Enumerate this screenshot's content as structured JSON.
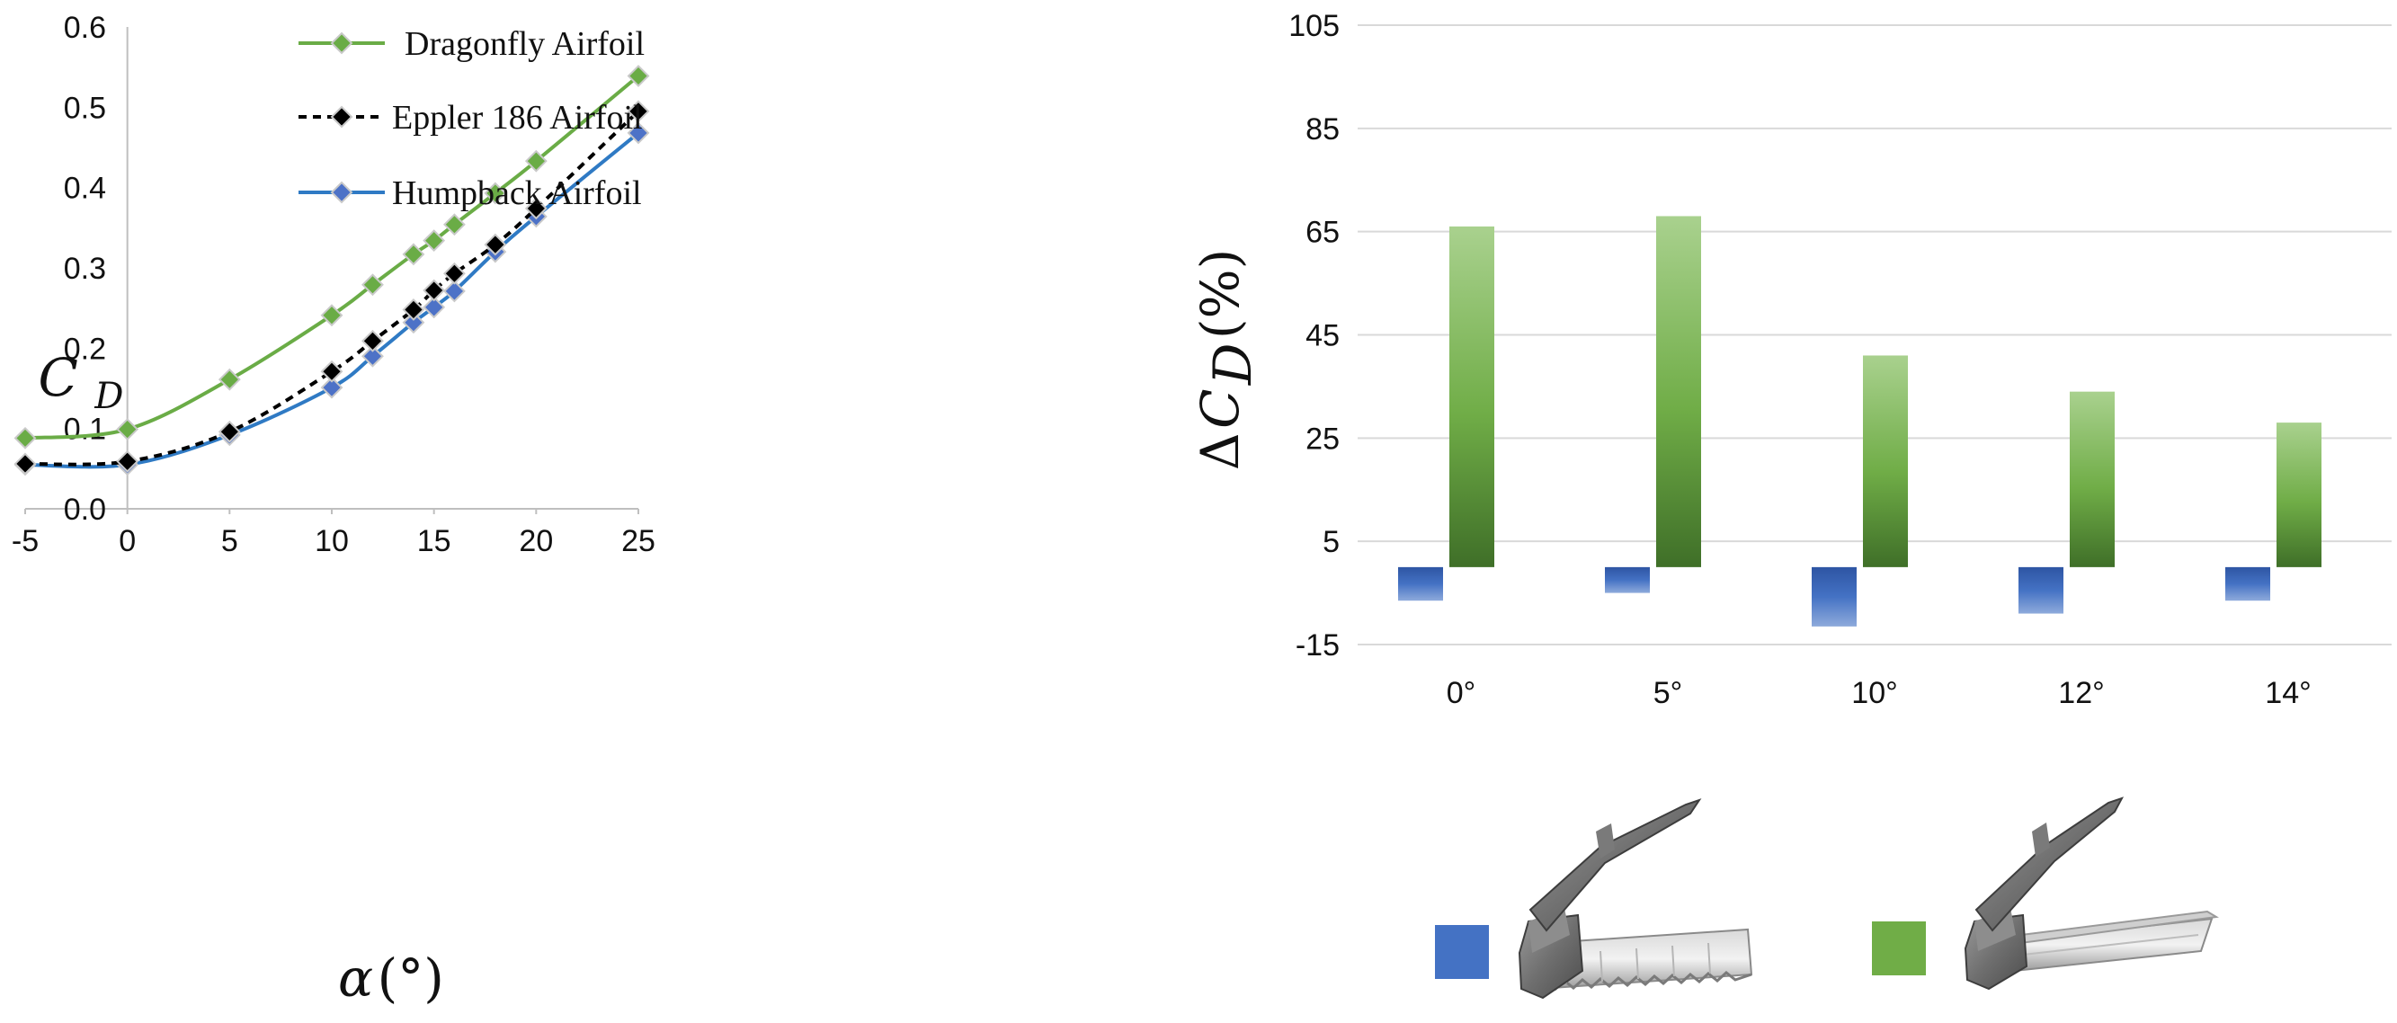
{
  "chart_data": [
    {
      "type": "line",
      "ylabel_main": "C",
      "ylabel_sub": "D",
      "xlabel_main": "α",
      "xlabel_unit": "(°)",
      "xlim": [
        -5,
        25
      ],
      "ylim": [
        0.0,
        0.6
      ],
      "x_ticks": [
        "-5",
        "0",
        "5",
        "10",
        "15",
        "20",
        "25"
      ],
      "y_ticks": [
        "0.0",
        "0.1",
        "0.2",
        "0.3",
        "0.4",
        "0.5",
        "0.6"
      ],
      "grid": false,
      "legend_position": "top-left",
      "series": [
        {
          "name": "Dragonfly Airfoil",
          "color": "#6aac46",
          "marker_color": "#6aac46",
          "line_style": "solid",
          "x": [
            -5,
            0,
            5,
            10,
            12,
            14,
            15,
            16,
            18,
            20,
            25
          ],
          "y": [
            0.088,
            0.099,
            0.161,
            0.241,
            0.279,
            0.317,
            0.334,
            0.354,
            0.393,
            0.433,
            0.539
          ]
        },
        {
          "name": "Eppler 186 Airfoil",
          "color": "#000000",
          "marker_color": "#000000",
          "line_style": "dashed",
          "x": [
            -5,
            0,
            5,
            10,
            12,
            14,
            15,
            16,
            18,
            20,
            25
          ],
          "y": [
            0.056,
            0.059,
            0.096,
            0.171,
            0.209,
            0.248,
            0.272,
            0.293,
            0.329,
            0.374,
            0.495
          ]
        },
        {
          "name": "Humpback Airfoil",
          "color": "#2f7ac4",
          "marker_color": "#4d72c7",
          "line_style": "solid",
          "x": [
            -5,
            0,
            5,
            10,
            12,
            14,
            15,
            16,
            18,
            20,
            25
          ],
          "y": [
            0.055,
            0.055,
            0.092,
            0.151,
            0.19,
            0.232,
            0.251,
            0.271,
            0.32,
            0.364,
            0.468
          ]
        }
      ]
    },
    {
      "type": "bar",
      "ylabel_prefix": "Δ",
      "ylabel_main": "C",
      "ylabel_sub": "D",
      "ylabel_unit": "(%)",
      "categories": [
        "0°",
        "5°",
        "10°",
        "12°",
        "14°"
      ],
      "y_ticks": [
        "105",
        "85",
        "65",
        "45",
        "25",
        "5",
        "-15"
      ],
      "ylim": [
        -15,
        105
      ],
      "grid": true,
      "series": [
        {
          "color": "#4472c4",
          "values": [
            -6.5,
            -5,
            -11.5,
            -9,
            -6.5
          ]
        },
        {
          "color": "#70ad47",
          "values": [
            66,
            68,
            41,
            34,
            28
          ]
        }
      ]
    }
  ],
  "key": {
    "blue_color": "#4472c4",
    "green_color": "#70ad47"
  }
}
